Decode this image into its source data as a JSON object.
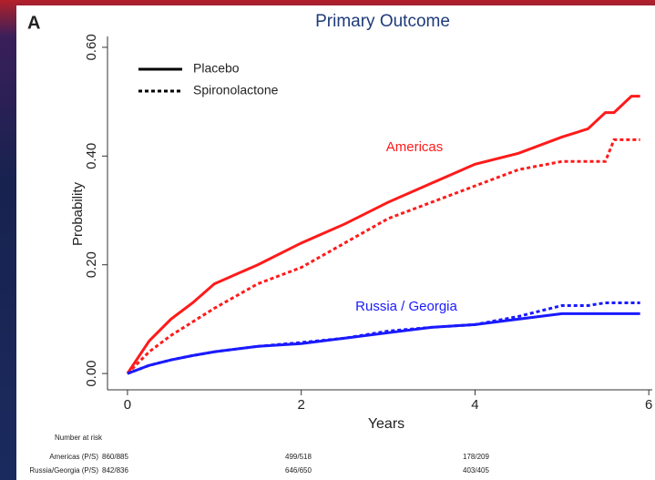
{
  "chart_data": {
    "type": "line",
    "panel_label": "A",
    "title": "Primary Outcome",
    "xlabel": "Years",
    "ylabel": "Probability",
    "x": [
      0,
      0.25,
      0.5,
      0.75,
      1,
      1.5,
      2,
      2.5,
      3,
      3.5,
      4,
      4.5,
      5,
      5.3,
      5.5,
      5.6,
      5.8,
      5.9
    ],
    "series": [
      {
        "color": "#ff1a1a",
        "dash": "solid",
        "values": [
          0,
          0.06,
          0.1,
          0.13,
          0.165,
          0.2,
          0.24,
          0.275,
          0.315,
          0.35,
          0.385,
          0.405,
          0.435,
          0.45,
          0.48,
          0.48,
          0.51,
          0.51
        ]
      },
      {
        "color": "#ff1a1a",
        "dash": "dotted",
        "values": [
          0,
          0.04,
          0.07,
          0.095,
          0.12,
          0.165,
          0.195,
          0.24,
          0.285,
          0.315,
          0.345,
          0.375,
          0.39,
          0.39,
          0.39,
          0.43,
          0.43,
          0.43
        ]
      },
      {
        "color": "#1a1aff",
        "dash": "solid",
        "values": [
          0,
          0.015,
          0.025,
          0.033,
          0.04,
          0.05,
          0.055,
          0.065,
          0.075,
          0.085,
          0.09,
          0.1,
          0.11,
          0.11,
          0.11,
          0.11,
          0.11,
          0.11
        ]
      },
      {
        "color": "#1a1aff",
        "dash": "dotted",
        "values": [
          0,
          0.015,
          0.025,
          0.033,
          0.04,
          0.05,
          0.057,
          0.065,
          0.078,
          0.085,
          0.09,
          0.105,
          0.125,
          0.125,
          0.13,
          0.13,
          0.13,
          0.13
        ]
      }
    ],
    "legend": [
      {
        "label": "Placebo",
        "dash": "solid"
      },
      {
        "label": "Spironolactone",
        "dash": "dotted"
      }
    ],
    "annotations": [
      {
        "text": "Americas",
        "color": "#ff1a1a"
      },
      {
        "text": "Russia / Georgia",
        "color": "#1a1aff"
      }
    ],
    "xlim": [
      -0.23,
      6.04
    ],
    "ylim": [
      -0.03,
      0.62
    ],
    "xticks": [
      0,
      2,
      4,
      6
    ],
    "yticks": [
      {
        "value": 0,
        "label": "0.00"
      },
      {
        "value": 0.2,
        "label": "0.20"
      },
      {
        "value": 0.4,
        "label": "0.40"
      },
      {
        "value": 0.6,
        "label": "0.60"
      }
    ],
    "risk_table": {
      "title": "Number at risk",
      "rows": [
        {
          "label": "Americas (P/S)",
          "values": [
            "860/885",
            "499/518",
            "178/209"
          ]
        },
        {
          "label": "Russia/Georgia (P/S)",
          "values": [
            "842/836",
            "646/650",
            "403/405"
          ]
        }
      ]
    }
  }
}
